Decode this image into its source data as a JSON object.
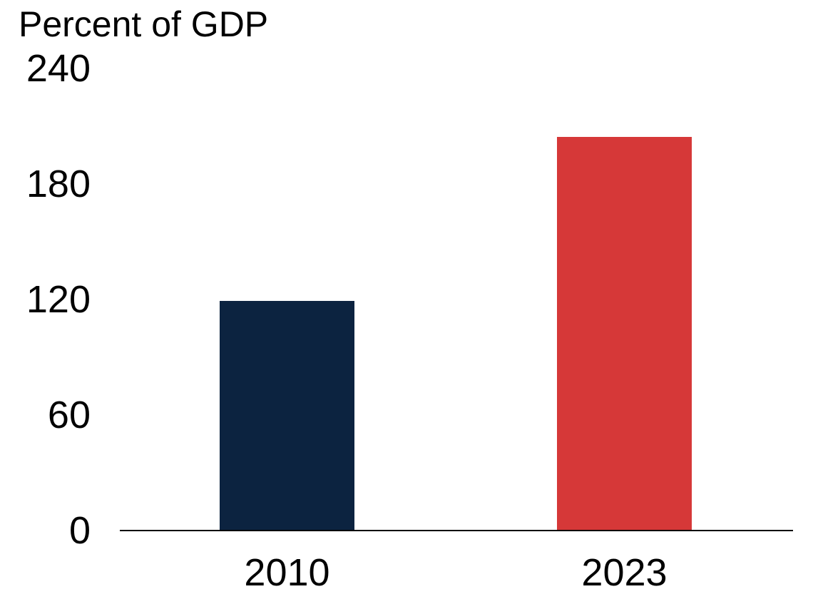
{
  "chart_data": {
    "type": "bar",
    "title": "Percent of GDP",
    "categories": [
      "2010",
      "2023"
    ],
    "values": [
      119,
      204
    ],
    "bar_colors": [
      "#0c2340",
      "#d63838"
    ],
    "ylim": [
      0,
      240
    ],
    "yticks": [
      0,
      60,
      120,
      180,
      240
    ],
    "ytick_labels": [
      "0",
      "60",
      "120",
      "180",
      "240"
    ],
    "xlabel": "",
    "ylabel": "Percent of GDP",
    "grid": false,
    "legend": "none",
    "axis_color": "#000000",
    "text_color": "#000000",
    "background_color": "#ffffff"
  }
}
